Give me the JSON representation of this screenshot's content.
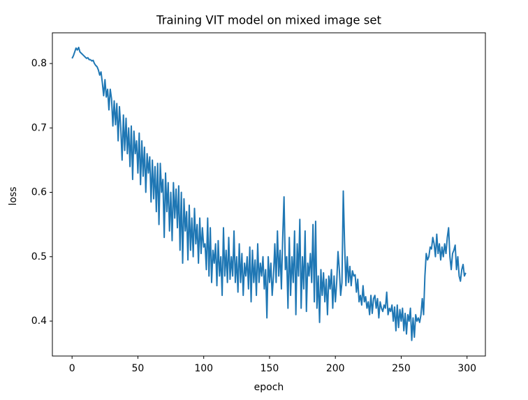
{
  "chart_data": {
    "type": "line",
    "title": "Training VIT model on mixed image set",
    "xlabel": "epoch",
    "ylabel": "loss",
    "color": "#1f77b4",
    "x": [
      0,
      1,
      2,
      3,
      4,
      5,
      6,
      7,
      8,
      9,
      10,
      11,
      12,
      13,
      14,
      15,
      16,
      17,
      18,
      19,
      20,
      21,
      22,
      23,
      24,
      25,
      26,
      27,
      28,
      29,
      30,
      31,
      32,
      33,
      34,
      35,
      36,
      37,
      38,
      39,
      40,
      41,
      42,
      43,
      44,
      45,
      46,
      47,
      48,
      49,
      50,
      51,
      52,
      53,
      54,
      55,
      56,
      57,
      58,
      59,
      60,
      61,
      62,
      63,
      64,
      65,
      66,
      67,
      68,
      69,
      70,
      71,
      72,
      73,
      74,
      75,
      76,
      77,
      78,
      79,
      80,
      81,
      82,
      83,
      84,
      85,
      86,
      87,
      88,
      89,
      90,
      91,
      92,
      93,
      94,
      95,
      96,
      97,
      98,
      99,
      100,
      101,
      102,
      103,
      104,
      105,
      106,
      107,
      108,
      109,
      110,
      111,
      112,
      113,
      114,
      115,
      116,
      117,
      118,
      119,
      120,
      121,
      122,
      123,
      124,
      125,
      126,
      127,
      128,
      129,
      130,
      131,
      132,
      133,
      134,
      135,
      136,
      137,
      138,
      139,
      140,
      141,
      142,
      143,
      144,
      145,
      146,
      147,
      148,
      149,
      150,
      151,
      152,
      153,
      154,
      155,
      156,
      157,
      158,
      159,
      160,
      161,
      162,
      163,
      164,
      165,
      166,
      167,
      168,
      169,
      170,
      171,
      172,
      173,
      174,
      175,
      176,
      177,
      178,
      179,
      180,
      181,
      182,
      183,
      184,
      185,
      186,
      187,
      188,
      189,
      190,
      191,
      192,
      193,
      194,
      195,
      196,
      197,
      198,
      199,
      200,
      201,
      202,
      203,
      204,
      205,
      206,
      207,
      208,
      209,
      210,
      211,
      212,
      213,
      214,
      215,
      216,
      217,
      218,
      219,
      220,
      221,
      222,
      223,
      224,
      225,
      226,
      227,
      228,
      229,
      230,
      231,
      232,
      233,
      234,
      235,
      236,
      237,
      238,
      239,
      240,
      241,
      242,
      243,
      244,
      245,
      246,
      247,
      248,
      249,
      250,
      251,
      252,
      253,
      254,
      255,
      256,
      257,
      258,
      259,
      260,
      261,
      262,
      263,
      264,
      265,
      266,
      267,
      268,
      269,
      270,
      271,
      272,
      273,
      274,
      275,
      276,
      277,
      278,
      279,
      280,
      281,
      282,
      283,
      284,
      285,
      286,
      287,
      288,
      289,
      290,
      291,
      292,
      293,
      294,
      295,
      296,
      297,
      298,
      299
    ],
    "values": [
      0.808,
      0.812,
      0.818,
      0.824,
      0.821,
      0.825,
      0.818,
      0.816,
      0.814,
      0.812,
      0.81,
      0.808,
      0.809,
      0.806,
      0.806,
      0.804,
      0.805,
      0.8,
      0.797,
      0.795,
      0.79,
      0.782,
      0.787,
      0.77,
      0.75,
      0.775,
      0.748,
      0.76,
      0.728,
      0.76,
      0.745,
      0.703,
      0.742,
      0.705,
      0.738,
      0.68,
      0.733,
      0.7,
      0.65,
      0.72,
      0.665,
      0.715,
      0.66,
      0.7,
      0.64,
      0.703,
      0.62,
      0.695,
      0.66,
      0.68,
      0.63,
      0.692,
      0.612,
      0.68,
      0.625,
      0.67,
      0.6,
      0.66,
      0.63,
      0.655,
      0.585,
      0.65,
      0.59,
      0.64,
      0.57,
      0.645,
      0.55,
      0.645,
      0.6,
      0.62,
      0.53,
      0.63,
      0.57,
      0.615,
      0.54,
      0.6,
      0.525,
      0.615,
      0.56,
      0.605,
      0.545,
      0.61,
      0.51,
      0.6,
      0.49,
      0.59,
      0.54,
      0.57,
      0.495,
      0.58,
      0.51,
      0.56,
      0.5,
      0.575,
      0.52,
      0.55,
      0.49,
      0.56,
      0.505,
      0.545,
      0.515,
      0.52,
      0.48,
      0.56,
      0.47,
      0.545,
      0.46,
      0.51,
      0.49,
      0.52,
      0.455,
      0.525,
      0.47,
      0.5,
      0.44,
      0.545,
      0.47,
      0.51,
      0.46,
      0.53,
      0.465,
      0.5,
      0.47,
      0.54,
      0.46,
      0.5,
      0.445,
      0.52,
      0.46,
      0.505,
      0.44,
      0.49,
      0.47,
      0.5,
      0.45,
      0.515,
      0.43,
      0.51,
      0.46,
      0.495,
      0.44,
      0.52,
      0.46,
      0.49,
      0.47,
      0.5,
      0.45,
      0.48,
      0.405,
      0.5,
      0.46,
      0.49,
      0.44,
      0.47,
      0.52,
      0.46,
      0.54,
      0.47,
      0.51,
      0.45,
      0.53,
      0.593,
      0.48,
      0.5,
      0.42,
      0.53,
      0.44,
      0.5,
      0.46,
      0.54,
      0.41,
      0.52,
      0.47,
      0.558,
      0.42,
      0.5,
      0.45,
      0.54,
      0.415,
      0.49,
      0.47,
      0.505,
      0.46,
      0.55,
      0.43,
      0.555,
      0.42,
      0.47,
      0.398,
      0.48,
      0.44,
      0.475,
      0.43,
      0.465,
      0.41,
      0.47,
      0.45,
      0.48,
      0.42,
      0.47,
      0.43,
      0.46,
      0.508,
      0.48,
      0.44,
      0.46,
      0.602,
      0.52,
      0.455,
      0.5,
      0.46,
      0.485,
      0.455,
      0.478,
      0.47,
      0.472,
      0.445,
      0.465,
      0.43,
      0.44,
      0.425,
      0.455,
      0.43,
      0.438,
      0.42,
      0.43,
      0.41,
      0.44,
      0.412,
      0.435,
      0.44,
      0.42,
      0.435,
      0.405,
      0.43,
      0.42,
      0.415,
      0.425,
      0.42,
      0.445,
      0.41,
      0.42,
      0.415,
      0.425,
      0.4,
      0.422,
      0.385,
      0.425,
      0.39,
      0.418,
      0.4,
      0.42,
      0.385,
      0.412,
      0.38,
      0.41,
      0.4,
      0.42,
      0.37,
      0.405,
      0.375,
      0.41,
      0.4,
      0.405,
      0.398,
      0.41,
      0.435,
      0.41,
      0.47,
      0.505,
      0.495,
      0.5,
      0.515,
      0.512,
      0.53,
      0.52,
      0.5,
      0.535,
      0.505,
      0.52,
      0.495,
      0.515,
      0.5,
      0.52,
      0.505,
      0.53,
      0.545,
      0.5,
      0.48,
      0.505,
      0.51,
      0.518,
      0.48,
      0.5,
      0.47,
      0.462,
      0.48,
      0.488,
      0.47,
      0.475
    ],
    "xlim": [
      -14.95,
      313.95
    ],
    "ylim": [
      0.3458,
      0.8477
    ],
    "xticks": [
      0,
      50,
      100,
      150,
      200,
      250,
      300
    ],
    "yticks": [
      0.4,
      0.5,
      0.6,
      0.7,
      0.8
    ]
  }
}
